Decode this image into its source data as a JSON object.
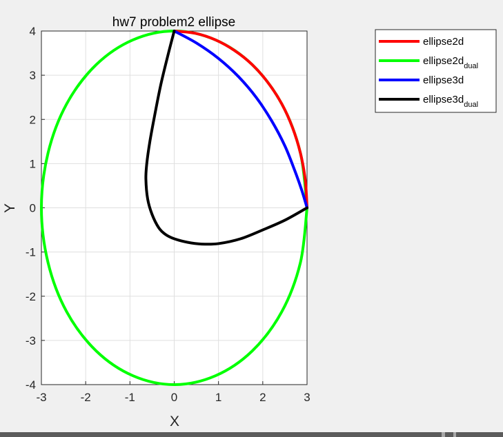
{
  "chart_data": {
    "type": "line",
    "title": "hw7 problem2 ellipse",
    "xlabel": "X",
    "ylabel": "Y",
    "xlim": [
      -3,
      3
    ],
    "ylim": [
      -4,
      4
    ],
    "xticks": [
      "-3",
      "-2",
      "-1",
      "0",
      "1",
      "2",
      "3"
    ],
    "yticks": [
      "-4",
      "-3",
      "-2",
      "-1",
      "0",
      "1",
      "2",
      "3",
      "4"
    ],
    "grid": true,
    "legend_position": "outside-top-right",
    "series": [
      {
        "name": "ellipse2d",
        "color": "#ff0000",
        "x": [
          0,
          0.47,
          0.93,
          1.36,
          1.76,
          2.12,
          2.43,
          2.67,
          2.85,
          2.96,
          3.0
        ],
        "y": [
          4,
          3.95,
          3.8,
          3.56,
          3.24,
          2.83,
          2.35,
          1.82,
          1.24,
          0.63,
          0
        ]
      },
      {
        "name": "ellipse2d",
        "subscript": "dual",
        "color": "#00ff00",
        "x": [
          3.0,
          2.85,
          2.43,
          1.76,
          0.93,
          0,
          -0.93,
          -1.76,
          -2.43,
          -2.85,
          -3.0,
          -2.85,
          -2.43,
          -1.76,
          -0.93,
          0,
          0.93,
          1.76,
          2.43,
          2.85,
          3.0
        ],
        "y": [
          0,
          1.24,
          2.35,
          3.24,
          3.8,
          4,
          3.8,
          3.24,
          2.35,
          1.24,
          0,
          -1.24,
          -2.35,
          -3.24,
          -3.8,
          -4,
          -3.8,
          -3.24,
          -2.35,
          -1.24,
          0
        ]
      },
      {
        "name": "ellipse3d",
        "color": "#0000ff",
        "x": [
          0,
          0.5,
          1.0,
          1.45,
          1.85,
          2.2,
          2.5,
          2.72,
          2.88,
          3.0
        ],
        "y": [
          4,
          3.73,
          3.38,
          2.97,
          2.5,
          1.97,
          1.4,
          0.85,
          0.4,
          0
        ]
      },
      {
        "name": "ellipse3d",
        "subscript": "dual",
        "color": "#000000",
        "x": [
          0,
          -0.13,
          -0.3,
          -0.44,
          -0.55,
          -0.62,
          -0.64,
          -0.6,
          -0.5,
          -0.35,
          -0.2,
          0,
          0.3,
          0.62,
          1.0,
          1.5,
          2.0,
          2.5,
          3.0
        ],
        "y": [
          4,
          3.5,
          2.8,
          2.1,
          1.5,
          1.0,
          0.65,
          0.2,
          -0.15,
          -0.45,
          -0.6,
          -0.7,
          -0.78,
          -0.82,
          -0.81,
          -0.7,
          -0.5,
          -0.28,
          0
        ]
      }
    ]
  }
}
